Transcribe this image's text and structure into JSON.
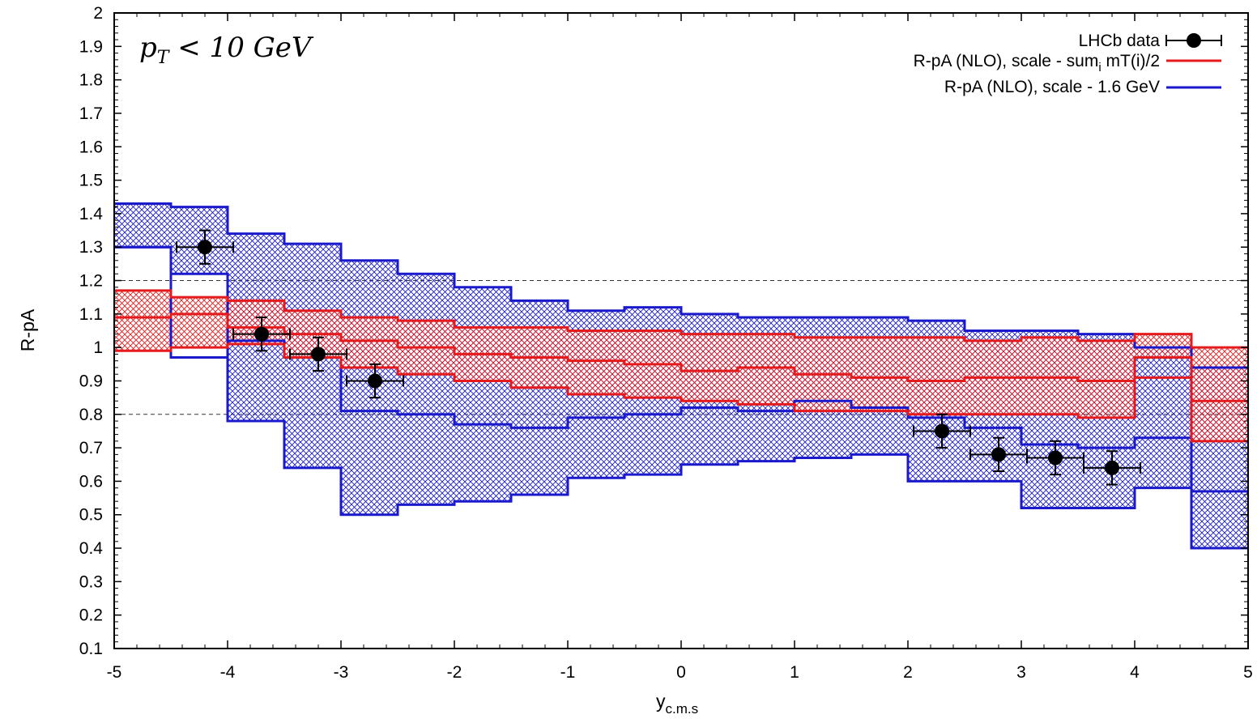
{
  "chart_data": {
    "type": "line",
    "title": "",
    "annotation": {
      "text": "p",
      "sub": "T",
      "rest": " < 10 GeV"
    },
    "xlabel": {
      "main": "y",
      "sub": "c.m.s"
    },
    "ylabel": "R-pA",
    "xlim": [
      -5,
      5
    ],
    "ylim": [
      0.1,
      2.0
    ],
    "x_ticks": [
      -5,
      -4,
      -3,
      -2,
      -1,
      0,
      1,
      2,
      3,
      4,
      5
    ],
    "y_ticks": [
      0.1,
      0.2,
      0.3,
      0.4,
      0.5,
      0.6,
      0.7,
      0.8,
      0.9,
      1,
      1.1,
      1.2,
      1.3,
      1.4,
      1.5,
      1.6,
      1.7,
      1.8,
      1.9,
      2
    ],
    "reference_lines": [
      0.8,
      1.2
    ],
    "grid": false,
    "legend_position": "top-right",
    "legend": [
      {
        "label": "LHCb data",
        "kind": "points",
        "color": "#000000"
      },
      {
        "label_main": "R-pA (NLO), scale - sum",
        "label_sub": "i",
        "label_rest": " mT(i)/2",
        "kind": "line",
        "color": "#e41a1c"
      },
      {
        "label": "R-pA (NLO), scale - 1.6 GeV",
        "kind": "line",
        "color": "#1a1acc"
      }
    ],
    "series": [
      {
        "kind": "band",
        "color": "#1a1acc",
        "bin_edges": [
          -5,
          -4.5,
          -4,
          -3.5,
          -3,
          -2.5,
          -2,
          -1.5,
          -1,
          -0.5,
          0,
          0.5,
          1,
          1.5,
          2,
          2.5,
          3,
          3.5,
          4,
          4.5,
          5
        ],
        "upper": [
          1.43,
          1.42,
          1.34,
          1.31,
          1.26,
          1.22,
          1.18,
          1.14,
          1.11,
          1.12,
          1.1,
          1.09,
          1.09,
          1.09,
          1.08,
          1.05,
          1.05,
          1.04,
          1.0,
          0.94
        ],
        "lower": [
          1.3,
          1.22,
          0.78,
          0.64,
          0.5,
          0.53,
          0.54,
          0.56,
          0.61,
          0.62,
          0.65,
          0.66,
          0.67,
          0.68,
          0.6,
          0.6,
          0.52,
          0.52,
          0.58,
          0.4
        ],
        "central": [
          1.3,
          0.97,
          1.02,
          0.97,
          0.81,
          0.8,
          0.77,
          0.76,
          0.79,
          0.8,
          0.82,
          0.81,
          0.84,
          0.82,
          0.79,
          0.76,
          0.71,
          0.7,
          0.73,
          0.57
        ]
      },
      {
        "kind": "band",
        "color": "#e41a1c",
        "bin_edges": [
          -5,
          -4.5,
          -4,
          -3.5,
          -3,
          -2.5,
          -2,
          -1.5,
          -1,
          -0.5,
          0,
          0.5,
          1,
          1.5,
          2,
          2.5,
          3,
          3.5,
          4,
          4.5,
          5
        ],
        "upper": [
          1.17,
          1.15,
          1.14,
          1.11,
          1.09,
          1.08,
          1.06,
          1.06,
          1.05,
          1.05,
          1.04,
          1.04,
          1.03,
          1.03,
          1.03,
          1.02,
          1.03,
          1.02,
          1.04,
          1.0
        ],
        "lower": [
          0.99,
          1.0,
          1.01,
          0.97,
          0.94,
          0.92,
          0.9,
          0.88,
          0.86,
          0.85,
          0.84,
          0.83,
          0.81,
          0.81,
          0.8,
          0.8,
          0.8,
          0.79,
          0.97,
          0.72
        ],
        "central": [
          1.09,
          1.1,
          1.06,
          1.04,
          1.02,
          1.0,
          0.98,
          0.97,
          0.96,
          0.95,
          0.93,
          0.94,
          0.92,
          0.91,
          0.9,
          0.91,
          0.91,
          0.9,
          0.91,
          0.84
        ]
      },
      {
        "kind": "points",
        "color": "#000000",
        "x": [
          -4.2,
          -3.7,
          -3.2,
          -2.7,
          2.3,
          2.8,
          3.3,
          3.8
        ],
        "y": [
          1.3,
          1.04,
          0.98,
          0.9,
          0.75,
          0.68,
          0.67,
          0.64
        ],
        "xerr": [
          0.25,
          0.25,
          0.25,
          0.25,
          0.25,
          0.25,
          0.25,
          0.25
        ],
        "yerr": [
          0.05,
          0.05,
          0.05,
          0.05,
          0.05,
          0.05,
          0.05,
          0.05
        ]
      }
    ]
  }
}
